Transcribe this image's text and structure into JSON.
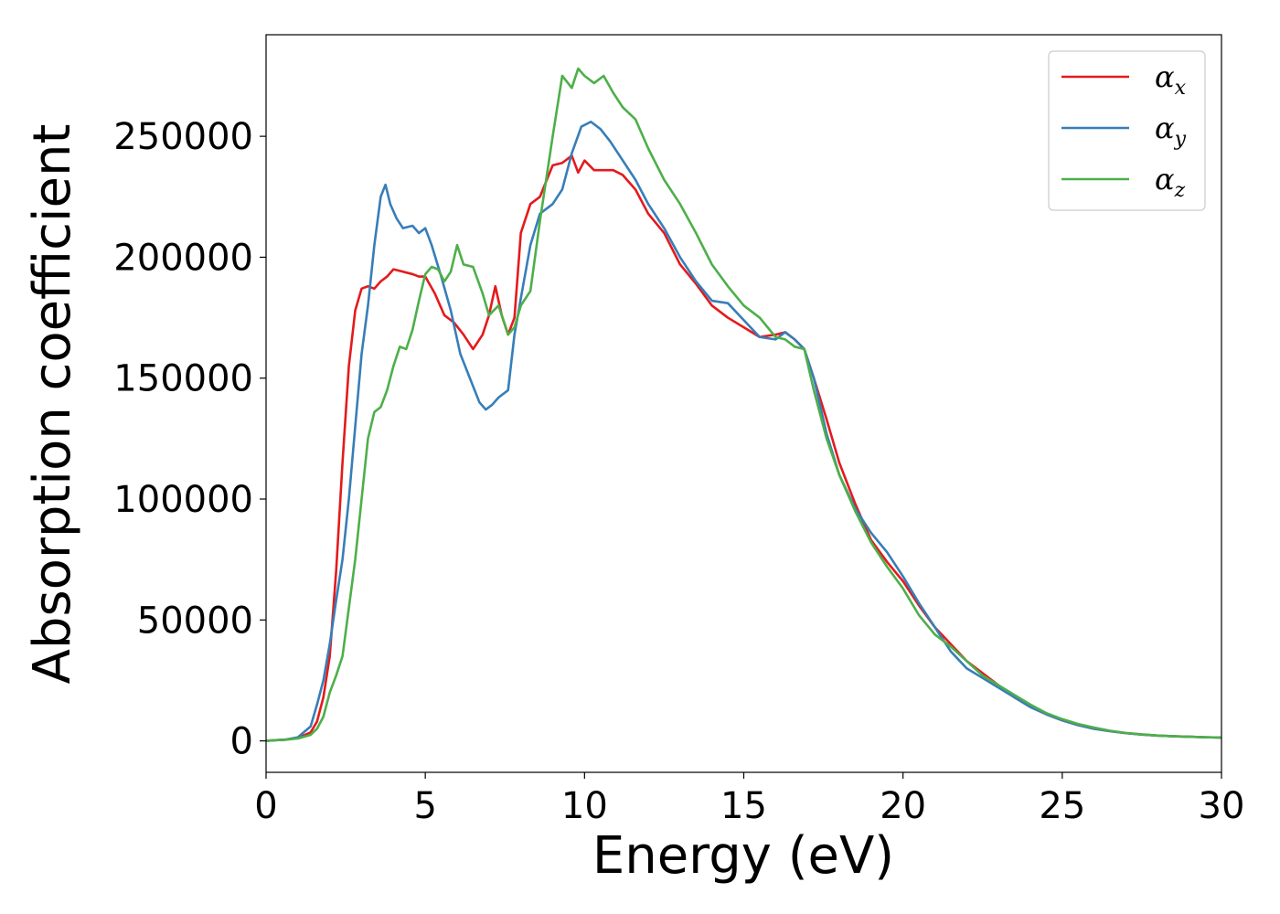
{
  "chart_data": {
    "type": "line",
    "title": "",
    "xlabel": "Energy (eV)",
    "ylabel": "Absorption coefficient",
    "xlim": [
      0,
      30
    ],
    "ylim": [
      -13000,
      292000
    ],
    "xticks": [
      0,
      5,
      10,
      15,
      20,
      25,
      30
    ],
    "xtick_labels": [
      "0",
      "5",
      "10",
      "15",
      "20",
      "25",
      "30"
    ],
    "yticks": [
      0,
      50000,
      100000,
      150000,
      200000,
      250000
    ],
    "ytick_labels": [
      "0",
      "50000",
      "100000",
      "150000",
      "200000",
      "250000"
    ],
    "grid": false,
    "legend_position": "top-right",
    "series": [
      {
        "name": "α_x",
        "label_main": "α",
        "label_sub": "x",
        "color": "#e41a1c",
        "x": [
          0,
          0.3,
          0.6,
          1.0,
          1.4,
          1.6,
          1.8,
          2.0,
          2.2,
          2.4,
          2.6,
          2.8,
          3.0,
          3.2,
          3.4,
          3.6,
          3.8,
          4.0,
          4.3,
          4.6,
          4.8,
          5.0,
          5.3,
          5.6,
          5.9,
          6.2,
          6.5,
          6.8,
          7.0,
          7.2,
          7.4,
          7.6,
          7.8,
          8.0,
          8.3,
          8.6,
          9.0,
          9.3,
          9.6,
          9.8,
          10.0,
          10.3,
          10.6,
          10.9,
          11.2,
          11.6,
          12.0,
          12.5,
          13.0,
          13.5,
          14.0,
          14.5,
          15.0,
          15.5,
          16.0,
          16.3,
          16.6,
          16.9,
          17.2,
          17.6,
          18.0,
          18.5,
          19.0,
          19.5,
          20.0,
          20.5,
          21.0,
          21.5,
          22.0,
          22.5,
          23.0,
          23.5,
          24.0,
          24.5,
          25.0,
          25.5,
          26.0,
          26.5,
          27.0,
          27.5,
          28.0,
          28.5,
          29.0,
          29.5,
          30.0
        ],
        "values": [
          0,
          300,
          500,
          1200,
          3500,
          8000,
          18000,
          35000,
          70000,
          115000,
          155000,
          178000,
          187000,
          188000,
          187000,
          190000,
          192000,
          195000,
          194000,
          193000,
          192000,
          192000,
          185000,
          176000,
          173000,
          168000,
          162000,
          168000,
          176000,
          188000,
          176000,
          168000,
          175000,
          210000,
          222000,
          225000,
          238000,
          239000,
          242000,
          235000,
          240000,
          236000,
          236000,
          236000,
          234000,
          228000,
          218000,
          210000,
          197000,
          189000,
          180000,
          175000,
          171000,
          167000,
          168000,
          169000,
          166000,
          162000,
          150000,
          133000,
          115000,
          98000,
          83000,
          74000,
          66000,
          56000,
          47000,
          40000,
          33000,
          28000,
          23000,
          18000,
          14000,
          11000,
          8500,
          6500,
          5000,
          4000,
          3200,
          2600,
          2200,
          1900,
          1700,
          1500,
          1400
        ]
      },
      {
        "name": "α_y",
        "label_main": "α",
        "label_sub": "y",
        "color": "#377eb8",
        "x": [
          0,
          0.3,
          0.6,
          1.0,
          1.4,
          1.6,
          1.8,
          2.0,
          2.2,
          2.4,
          2.6,
          2.8,
          3.0,
          3.2,
          3.4,
          3.6,
          3.75,
          3.9,
          4.1,
          4.3,
          4.6,
          4.8,
          5.0,
          5.2,
          5.5,
          5.8,
          6.1,
          6.4,
          6.7,
          6.9,
          7.1,
          7.3,
          7.6,
          7.8,
          8.0,
          8.3,
          8.6,
          9.0,
          9.3,
          9.6,
          9.9,
          10.2,
          10.5,
          10.8,
          11.2,
          11.6,
          12.0,
          12.5,
          13.0,
          13.5,
          14.0,
          14.5,
          15.0,
          15.5,
          16.0,
          16.3,
          16.6,
          16.9,
          17.2,
          17.6,
          18.0,
          18.5,
          19.0,
          19.5,
          20.0,
          20.5,
          21.0,
          21.5,
          22.0,
          22.5,
          23.0,
          23.5,
          24.0,
          24.5,
          25.0,
          25.5,
          26.0,
          26.5,
          27.0,
          27.5,
          28.0,
          28.5,
          29.0,
          29.5,
          30.0
        ],
        "values": [
          0,
          300,
          500,
          1500,
          6000,
          15000,
          25000,
          40000,
          58000,
          75000,
          100000,
          130000,
          160000,
          180000,
          205000,
          225000,
          230000,
          222000,
          216000,
          212000,
          213000,
          210000,
          212000,
          205000,
          192000,
          178000,
          160000,
          150000,
          140000,
          137000,
          139000,
          142000,
          145000,
          168000,
          183000,
          205000,
          218000,
          222000,
          228000,
          243000,
          254000,
          256000,
          253000,
          248000,
          240000,
          232000,
          222000,
          212000,
          200000,
          190000,
          182000,
          181000,
          174000,
          167000,
          166000,
          169000,
          166000,
          162000,
          150000,
          127000,
          110000,
          96000,
          86000,
          78000,
          68000,
          57000,
          47000,
          37000,
          30000,
          26000,
          22000,
          18000,
          14000,
          11000,
          8500,
          6500,
          5000,
          4000,
          3200,
          2600,
          2200,
          1900,
          1700,
          1500,
          1400
        ]
      },
      {
        "name": "α_z",
        "label_main": "α",
        "label_sub": "z",
        "color": "#4daf4a",
        "x": [
          0,
          0.3,
          0.6,
          1.0,
          1.4,
          1.6,
          1.8,
          2.0,
          2.2,
          2.4,
          2.6,
          2.8,
          3.0,
          3.2,
          3.4,
          3.6,
          3.8,
          4.0,
          4.2,
          4.4,
          4.6,
          4.8,
          5.0,
          5.2,
          5.4,
          5.6,
          5.8,
          6.0,
          6.2,
          6.5,
          6.8,
          7.0,
          7.3,
          7.6,
          7.8,
          8.0,
          8.3,
          8.6,
          9.0,
          9.3,
          9.6,
          9.8,
          10.0,
          10.3,
          10.6,
          10.9,
          11.2,
          11.6,
          12.0,
          12.5,
          13.0,
          13.5,
          14.0,
          14.5,
          15.0,
          15.5,
          16.0,
          16.3,
          16.6,
          16.9,
          17.2,
          17.6,
          18.0,
          18.5,
          19.0,
          19.5,
          20.0,
          20.5,
          21.0,
          21.5,
          22.0,
          22.5,
          23.0,
          23.5,
          24.0,
          24.5,
          25.0,
          25.5,
          26.0,
          26.5,
          27.0,
          27.5,
          28.0,
          28.5,
          29.0,
          29.5,
          30.0
        ],
        "values": [
          0,
          300,
          500,
          1000,
          2500,
          5000,
          10000,
          20000,
          27000,
          35000,
          55000,
          75000,
          100000,
          125000,
          136000,
          138000,
          145000,
          155000,
          163000,
          162000,
          170000,
          182000,
          193000,
          196000,
          195000,
          190000,
          194000,
          205000,
          197000,
          196000,
          185000,
          176000,
          180000,
          168000,
          171000,
          180000,
          186000,
          215000,
          250000,
          275000,
          270000,
          278000,
          275000,
          272000,
          275000,
          268000,
          262000,
          257000,
          245000,
          232000,
          222000,
          210000,
          197000,
          188000,
          180000,
          175000,
          167000,
          166000,
          163000,
          162000,
          145000,
          125000,
          110000,
          95000,
          82000,
          72000,
          63000,
          52000,
          44000,
          39000,
          33000,
          27000,
          23000,
          19000,
          15000,
          11500,
          9000,
          7000,
          5500,
          4200,
          3300,
          2700,
          2200,
          1900,
          1700,
          1500,
          1400
        ]
      }
    ]
  }
}
